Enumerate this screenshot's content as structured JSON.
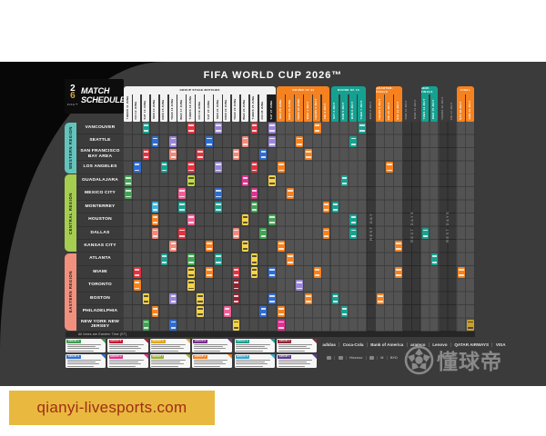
{
  "page": {
    "watermark_text": "qianyi-livesports.com",
    "dongqiudi_text": "懂球帝"
  },
  "poster": {
    "title": "FIFA WORLD CUP 2026™",
    "logo": {
      "digit_top": "2",
      "digit_bottom": "6",
      "fifa": "FIFA™",
      "line1": "MATCH",
      "line2": "SCHEDULE"
    },
    "note": "All times are Eastern Time (ET)",
    "rest_labels": {
      "single": "REST DAY",
      "multi": "REST DAYS"
    },
    "regions": [
      {
        "name": "WESTERN REGION",
        "color": "#62c4bc",
        "start": 0,
        "count": 4
      },
      {
        "name": "CENTRAL REGION",
        "color": "#a5cd4f",
        "start": 4,
        "count": 6
      },
      {
        "name": "EASTERN REGION",
        "color": "#f2907e",
        "start": 10,
        "count": 6
      }
    ],
    "cities": [
      "VANCOUVER",
      "SEATTLE",
      "SAN FRANCISCO BAY AREA",
      "LOS ANGELES",
      "GUADALAJARA",
      "MEXICO CITY",
      "MONTERREY",
      "HOUSTON",
      "DALLAS",
      "KANSAS CITY",
      "ATLANTA",
      "MIAMI",
      "TORONTO",
      "BOSTON",
      "PHILADELPHIA",
      "NEW YORK NEW JERSEY"
    ],
    "phases": [
      {
        "label": "GROUP STAGE MATCHES",
        "key": "group",
        "start": 0,
        "span": 17
      },
      {
        "label": "ROUND OF 32",
        "key": "r32",
        "start": 17,
        "span": 6
      },
      {
        "label": "ROUND OF 16",
        "key": "r16",
        "start": 23,
        "span": 4
      },
      {
        "label": "QUARTER-FINALS",
        "key": "qf",
        "start": 28,
        "span": 3
      },
      {
        "label": "SEMI-FINALS",
        "key": "sf",
        "start": 33,
        "span": 2
      },
      {
        "label": "FINAL",
        "key": "final",
        "start": 37,
        "span": 2
      }
    ],
    "phase_colors": {
      "group": "#f2f2f2",
      "r32": "#f5821f",
      "r16": "#14a191",
      "qf": "#f5821f",
      "sf": "#14a191",
      "final": "#f5821f"
    },
    "columns": [
      {
        "label": "THURS 11 JUNE",
        "phase": "group"
      },
      {
        "label": "FRI 12 JUNE",
        "phase": "group"
      },
      {
        "label": "SAT 13 JUNE",
        "phase": "group"
      },
      {
        "label": "SUN 14 JUNE",
        "phase": "group"
      },
      {
        "label": "MON 15 JUNE",
        "phase": "group"
      },
      {
        "label": "TUES 16 JUNE",
        "phase": "group"
      },
      {
        "label": "WED 17 JUNE",
        "phase": "group"
      },
      {
        "label": "THURS 18 JUNE",
        "phase": "group"
      },
      {
        "label": "FRI 19 JUNE",
        "phase": "group"
      },
      {
        "label": "SAT 20 JUNE",
        "phase": "group"
      },
      {
        "label": "SUN 21 JUNE",
        "phase": "group"
      },
      {
        "label": "MON 22 JUNE",
        "phase": "group"
      },
      {
        "label": "TUES 23 JUNE",
        "phase": "group"
      },
      {
        "label": "WED 24 JUNE",
        "phase": "group"
      },
      {
        "label": "THURS 25 JUNE",
        "phase": "group"
      },
      {
        "label": "FRI 26 JUNE",
        "phase": "group"
      },
      {
        "label": "SAT 27 JUNE",
        "phase": "group",
        "highlight": true
      },
      {
        "label": "SUN 28 JUNE",
        "phase": "r32"
      },
      {
        "label": "MON 29 JUNE",
        "phase": "r32"
      },
      {
        "label": "TUES 30 JUNE",
        "phase": "r32"
      },
      {
        "label": "WED 1 JULY",
        "phase": "r32"
      },
      {
        "label": "THURS 2 JULY",
        "phase": "r32"
      },
      {
        "label": "FRI 3 JULY",
        "phase": "r32"
      },
      {
        "label": "SAT 4 JULY",
        "phase": "r16"
      },
      {
        "label": "SUN 5 JULY",
        "phase": "r16"
      },
      {
        "label": "MON 6 JULY",
        "phase": "r16"
      },
      {
        "label": "TUES 7 JULY",
        "phase": "r16"
      },
      {
        "label": "WED 8 JULY",
        "phase": "rest"
      },
      {
        "label": "THURS 9 JULY",
        "phase": "qf"
      },
      {
        "label": "FRI 10 JULY",
        "phase": "qf"
      },
      {
        "label": "SAT 11 JULY",
        "phase": "qf"
      },
      {
        "label": "SUN 12 JULY",
        "phase": "rest"
      },
      {
        "label": "MON 13 JULY",
        "phase": "rest"
      },
      {
        "label": "TUES 14 JULY",
        "phase": "sf"
      },
      {
        "label": "WED 15 JULY",
        "phase": "sf"
      },
      {
        "label": "THURS 16 JULY",
        "phase": "rest"
      },
      {
        "label": "FRI 17 JULY",
        "phase": "rest"
      },
      {
        "label": "SAT 18 JULY",
        "phase": "final"
      },
      {
        "label": "SUN 19 JULY",
        "phase": "final"
      }
    ],
    "rest_groups": [
      {
        "cols": [
          27
        ],
        "label": "REST DAY"
      },
      {
        "cols": [
          31,
          32
        ],
        "label": "REST DAYS"
      },
      {
        "cols": [
          35,
          36
        ],
        "label": "REST DAYS"
      }
    ],
    "badge_colors": {
      "teal": "#18a190",
      "blue": "#2e6cd0",
      "lightblue": "#3fb3df",
      "purple": "#9a86d8",
      "red": "#e03440",
      "salmon": "#f18a7b",
      "magenta": "#e0308e",
      "pink": "#ef5f96",
      "orange": "#f5821f",
      "yellow": "#f6d44a",
      "yellowgreen": "#c4d94a",
      "green": "#43a254",
      "darkred": "#8e2432",
      "gold": "#c9a22c"
    },
    "badges": [
      [
        0,
        2,
        "teal"
      ],
      [
        0,
        7,
        "red"
      ],
      [
        0,
        10,
        "purple"
      ],
      [
        0,
        14,
        "red"
      ],
      [
        0,
        16,
        "purple"
      ],
      [
        0,
        21,
        "orange"
      ],
      [
        0,
        26,
        "teal"
      ],
      [
        1,
        3,
        "blue"
      ],
      [
        1,
        5,
        "purple"
      ],
      [
        1,
        9,
        "blue"
      ],
      [
        1,
        13,
        "salmon"
      ],
      [
        1,
        16,
        "purple"
      ],
      [
        1,
        19,
        "orange"
      ],
      [
        1,
        25,
        "teal"
      ],
      [
        2,
        2,
        "red"
      ],
      [
        2,
        5,
        "salmon"
      ],
      [
        2,
        8,
        "red"
      ],
      [
        2,
        12,
        "salmon"
      ],
      [
        2,
        15,
        "blue"
      ],
      [
        2,
        20,
        "orange"
      ],
      [
        3,
        1,
        "blue"
      ],
      [
        3,
        4,
        "teal"
      ],
      [
        3,
        7,
        "red"
      ],
      [
        3,
        10,
        "purple"
      ],
      [
        3,
        14,
        "red"
      ],
      [
        3,
        17,
        "orange"
      ],
      [
        3,
        29,
        "orange"
      ],
      [
        4,
        0,
        "green"
      ],
      [
        4,
        7,
        "yellowgreen"
      ],
      [
        4,
        13,
        "magenta"
      ],
      [
        4,
        16,
        "yellow"
      ],
      [
        4,
        24,
        "teal"
      ],
      [
        5,
        0,
        "green"
      ],
      [
        5,
        6,
        "pink"
      ],
      [
        5,
        10,
        "blue"
      ],
      [
        5,
        14,
        "magenta"
      ],
      [
        5,
        18,
        "orange"
      ],
      [
        6,
        3,
        "lightblue"
      ],
      [
        6,
        6,
        "teal"
      ],
      [
        6,
        10,
        "teal"
      ],
      [
        6,
        14,
        "green"
      ],
      [
        6,
        22,
        "orange"
      ],
      [
        6,
        23,
        "teal"
      ],
      [
        7,
        3,
        "orange"
      ],
      [
        7,
        7,
        "pink"
      ],
      [
        7,
        13,
        "yellow"
      ],
      [
        7,
        16,
        "green"
      ],
      [
        7,
        25,
        "teal"
      ],
      [
        8,
        3,
        "salmon"
      ],
      [
        8,
        6,
        "red"
      ],
      [
        8,
        12,
        "salmon"
      ],
      [
        8,
        15,
        "green"
      ],
      [
        8,
        22,
        "orange"
      ],
      [
        8,
        25,
        "teal"
      ],
      [
        8,
        33,
        "teal"
      ],
      [
        9,
        5,
        "salmon"
      ],
      [
        9,
        9,
        "orange"
      ],
      [
        9,
        13,
        "yellow"
      ],
      [
        9,
        17,
        "orange"
      ],
      [
        9,
        30,
        "orange"
      ],
      [
        10,
        4,
        "teal"
      ],
      [
        10,
        7,
        "green"
      ],
      [
        10,
        10,
        "teal"
      ],
      [
        10,
        14,
        "yellow"
      ],
      [
        10,
        18,
        "orange"
      ],
      [
        10,
        34,
        "teal"
      ],
      [
        11,
        1,
        "red"
      ],
      [
        11,
        7,
        "yellow"
      ],
      [
        11,
        9,
        "orange"
      ],
      [
        11,
        12,
        "red"
      ],
      [
        11,
        14,
        "yellow"
      ],
      [
        11,
        16,
        "blue"
      ],
      [
        11,
        21,
        "orange"
      ],
      [
        11,
        30,
        "orange"
      ],
      [
        11,
        37,
        "orange"
      ],
      [
        12,
        1,
        "orange"
      ],
      [
        12,
        7,
        "yellow"
      ],
      [
        12,
        12,
        "darkred"
      ],
      [
        12,
        19,
        "purple"
      ],
      [
        13,
        2,
        "yellow"
      ],
      [
        13,
        5,
        "purple"
      ],
      [
        13,
        8,
        "yellow"
      ],
      [
        13,
        12,
        "darkred"
      ],
      [
        13,
        16,
        "blue"
      ],
      [
        13,
        20,
        "orange"
      ],
      [
        13,
        23,
        "teal"
      ],
      [
        13,
        28,
        "orange"
      ],
      [
        14,
        3,
        "orange"
      ],
      [
        14,
        8,
        "yellow"
      ],
      [
        14,
        11,
        "pink"
      ],
      [
        14,
        15,
        "blue"
      ],
      [
        14,
        17,
        "orange"
      ],
      [
        14,
        24,
        "teal"
      ],
      [
        15,
        2,
        "green"
      ],
      [
        15,
        5,
        "blue"
      ],
      [
        15,
        12,
        "yellow"
      ],
      [
        15,
        17,
        "magenta"
      ],
      [
        15,
        38,
        "gold"
      ]
    ],
    "groups": [
      {
        "label": "GROUP A",
        "color": "#3f9e4f"
      },
      {
        "label": "GROUP B",
        "color": "#c8102e"
      },
      {
        "label": "GROUP C",
        "color": "#e0a61b"
      },
      {
        "label": "GROUP D",
        "color": "#7b2d8b"
      },
      {
        "label": "GROUP E",
        "color": "#1aa08f"
      },
      {
        "label": "GROUP F",
        "color": "#8e2432"
      },
      {
        "label": "GROUP G",
        "color": "#2f6fd6"
      },
      {
        "label": "GROUP H",
        "color": "#e0308e"
      },
      {
        "label": "GROUP I",
        "color": "#9aae2e"
      },
      {
        "label": "GROUP J",
        "color": "#f5821f"
      },
      {
        "label": "GROUP K",
        "color": "#35a6d0"
      },
      {
        "label": "GROUP L",
        "color": "#5b3a8e"
      }
    ],
    "sponsors_row1": [
      "adidas",
      "Coca-Cola",
      "Bank of America",
      "aramco",
      "Lenovo",
      "QATAR AIRWAYS",
      "VISA"
    ],
    "sponsors_row2": [
      {
        "name": "palm-logo",
        "text": ""
      },
      {
        "name": "fan-logo",
        "text": ""
      },
      {
        "name": "hisense-logo",
        "text": "Hisense"
      },
      {
        "name": "globe-logo",
        "text": ""
      },
      {
        "name": "mcdonalds-logo",
        "text": "M"
      },
      {
        "name": "byd-logo",
        "text": "BYD"
      }
    ]
  }
}
